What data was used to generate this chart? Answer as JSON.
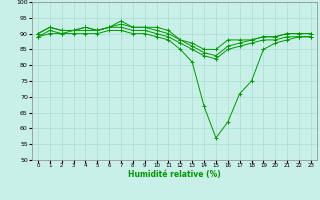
{
  "title": "",
  "xlabel": "Humidité relative (%)",
  "ylabel": "",
  "bg_color": "#c8efe8",
  "grid_color": "#aaddd0",
  "line_color": "#009900",
  "marker_color": "#009900",
  "xlim": [
    -0.5,
    23.5
  ],
  "ylim": [
    50,
    100
  ],
  "yticks": [
    50,
    55,
    60,
    65,
    70,
    75,
    80,
    85,
    90,
    95,
    100
  ],
  "xticks": [
    0,
    1,
    2,
    3,
    4,
    5,
    6,
    7,
    8,
    9,
    10,
    11,
    12,
    13,
    14,
    15,
    16,
    17,
    18,
    19,
    20,
    21,
    22,
    23
  ],
  "series": [
    {
      "x": [
        0,
        1,
        2,
        3,
        4,
        5,
        6,
        7,
        8,
        9,
        10,
        11,
        12,
        13,
        14,
        15,
        16,
        17,
        18,
        19,
        20,
        21,
        22,
        23
      ],
      "y": [
        90,
        92,
        91,
        91,
        92,
        91,
        92,
        94,
        92,
        92,
        92,
        91,
        88,
        87,
        85,
        85,
        88,
        88,
        88,
        89,
        89,
        90,
        90,
        90
      ]
    },
    {
      "x": [
        0,
        1,
        2,
        3,
        4,
        5,
        6,
        7,
        8,
        9,
        10,
        11,
        12,
        13,
        14,
        15,
        16,
        17,
        18,
        19,
        20,
        21,
        22,
        23
      ],
      "y": [
        90,
        92,
        91,
        91,
        92,
        91,
        92,
        93,
        92,
        92,
        91,
        90,
        88,
        86,
        84,
        83,
        86,
        87,
        88,
        89,
        89,
        90,
        90,
        90
      ]
    },
    {
      "x": [
        0,
        1,
        2,
        3,
        4,
        5,
        6,
        7,
        8,
        9,
        10,
        11,
        12,
        13,
        14,
        15,
        16,
        17,
        18,
        19,
        20,
        21,
        22,
        23
      ],
      "y": [
        89,
        91,
        90,
        91,
        91,
        91,
        92,
        92,
        91,
        91,
        90,
        89,
        87,
        85,
        83,
        82,
        85,
        86,
        87,
        88,
        88,
        89,
        89,
        89
      ]
    },
    {
      "x": [
        0,
        1,
        2,
        3,
        4,
        5,
        6,
        7,
        8,
        9,
        10,
        11,
        12,
        13,
        14,
        15,
        16,
        17,
        18,
        19,
        20,
        21,
        22,
        23
      ],
      "y": [
        89,
        90,
        90,
        90,
        90,
        90,
        91,
        91,
        90,
        90,
        89,
        88,
        85,
        81,
        67,
        57,
        62,
        71,
        75,
        85,
        87,
        88,
        89,
        89
      ]
    }
  ]
}
